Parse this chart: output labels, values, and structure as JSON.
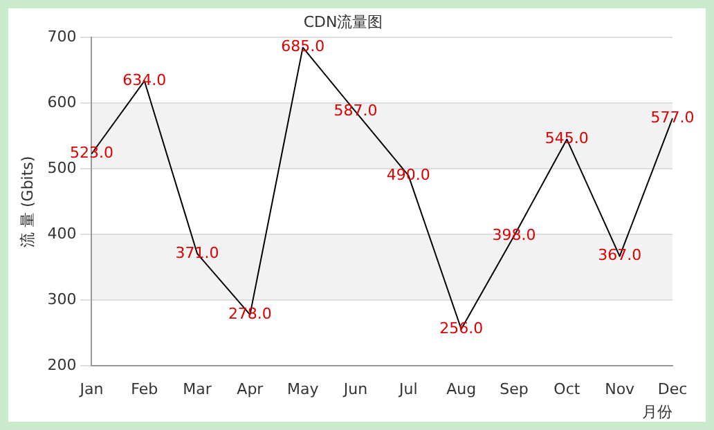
{
  "chart_data": {
    "type": "line",
    "title": "CDN流量图",
    "xlabel": "月份",
    "ylabel": "流 量 (Gbits)",
    "categories": [
      "Jan",
      "Feb",
      "Mar",
      "Apr",
      "May",
      "Jun",
      "Jul",
      "Aug",
      "Sep",
      "Oct",
      "Nov",
      "Dec"
    ],
    "series": [
      {
        "color": "#000000",
        "values": [
          523,
          634,
          371,
          278,
          685,
          587,
          490,
          256,
          398,
          545,
          367,
          577
        ],
        "value_labels": [
          "523.0",
          "634.0",
          "371.0",
          "278.0",
          "685.0",
          "587.0",
          "490.0",
          "256.0",
          "398.0",
          "545.0",
          "367.0",
          "577.0"
        ]
      }
    ],
    "ylim": [
      200,
      700
    ],
    "yticks": [
      200,
      300,
      400,
      500,
      600,
      700
    ],
    "grid": "y",
    "legend": false,
    "line_style": "solid"
  }
}
